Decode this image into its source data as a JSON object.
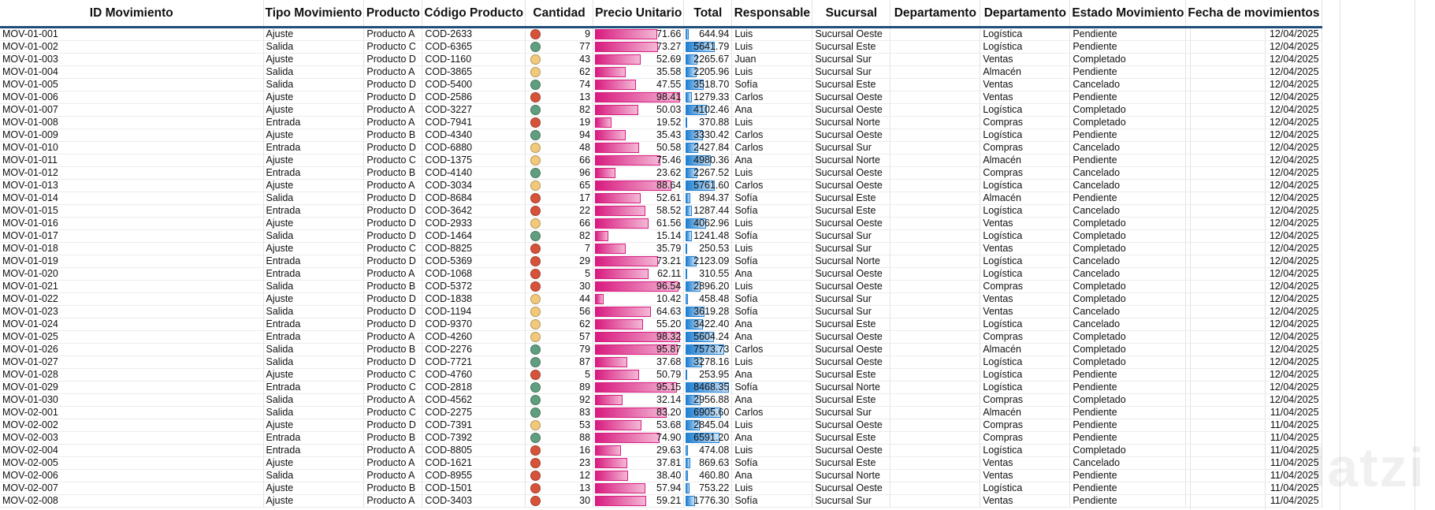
{
  "headers": [
    "ID Movimiento",
    "Tipo Movimiento",
    "Producto",
    "Código Producto",
    "Cantidad",
    "Precio Unitario",
    "Total",
    "Responsable",
    "Sucursal",
    "Departamento",
    "Departamento",
    "Estado Movimiento",
    "Fecha de movimientos"
  ],
  "colors": {
    "dot_red": "#d6533a",
    "dot_yellow": "#f2c97a",
    "dot_green": "#5f9e7e",
    "header_rule": "#1f4e79",
    "price_bar": "#d81b7f",
    "total_bar": "#1f7fd1"
  },
  "price_max": 98.41,
  "total_max": 8468.35,
  "watermark": "latzi",
  "rows": [
    {
      "id": "MOV-01-001",
      "tipo": "Ajuste",
      "producto": "Producto A",
      "codigo": "COD-2633",
      "cantidad": "9",
      "precio": "71.66",
      "total": "644.94",
      "resp": "Luis",
      "sucursal": "Sucursal Oeste",
      "dep1": "",
      "dep2": "Logística",
      "estado": "Pendiente",
      "fecha": "12/04/2025",
      "dot": "red"
    },
    {
      "id": "MOV-01-002",
      "tipo": "Salida",
      "producto": "Producto C",
      "codigo": "COD-6365",
      "cantidad": "77",
      "precio": "73.27",
      "total": "5641.79",
      "resp": "Luis",
      "sucursal": "Sucursal Este",
      "dep1": "",
      "dep2": "Logística",
      "estado": "Pendiente",
      "fecha": "12/04/2025",
      "dot": "green"
    },
    {
      "id": "MOV-01-003",
      "tipo": "Ajuste",
      "producto": "Producto D",
      "codigo": "COD-1160",
      "cantidad": "43",
      "precio": "52.69",
      "total": "2265.67",
      "resp": "Juan",
      "sucursal": "Sucursal Sur",
      "dep1": "",
      "dep2": "Ventas",
      "estado": "Completado",
      "fecha": "12/04/2025",
      "dot": "yellow"
    },
    {
      "id": "MOV-01-004",
      "tipo": "Salida",
      "producto": "Producto A",
      "codigo": "COD-3865",
      "cantidad": "62",
      "precio": "35.58",
      "total": "2205.96",
      "resp": "Luis",
      "sucursal": "Sucursal Sur",
      "dep1": "",
      "dep2": "Almacén",
      "estado": "Pendiente",
      "fecha": "12/04/2025",
      "dot": "yellow"
    },
    {
      "id": "MOV-01-005",
      "tipo": "Salida",
      "producto": "Producto D",
      "codigo": "COD-5400",
      "cantidad": "74",
      "precio": "47.55",
      "total": "3518.70",
      "resp": "Sofía",
      "sucursal": "Sucursal Este",
      "dep1": "",
      "dep2": "Ventas",
      "estado": "Cancelado",
      "fecha": "12/04/2025",
      "dot": "green"
    },
    {
      "id": "MOV-01-006",
      "tipo": "Ajuste",
      "producto": "Producto D",
      "codigo": "COD-2586",
      "cantidad": "13",
      "precio": "98.41",
      "total": "1279.33",
      "resp": "Carlos",
      "sucursal": "Sucursal Oeste",
      "dep1": "",
      "dep2": "Ventas",
      "estado": "Pendiente",
      "fecha": "12/04/2025",
      "dot": "red"
    },
    {
      "id": "MOV-01-007",
      "tipo": "Ajuste",
      "producto": "Producto A",
      "codigo": "COD-3227",
      "cantidad": "82",
      "precio": "50.03",
      "total": "4102.46",
      "resp": "Ana",
      "sucursal": "Sucursal Oeste",
      "dep1": "",
      "dep2": "Logística",
      "estado": "Completado",
      "fecha": "12/04/2025",
      "dot": "green"
    },
    {
      "id": "MOV-01-008",
      "tipo": "Entrada",
      "producto": "Producto A",
      "codigo": "COD-7941",
      "cantidad": "19",
      "precio": "19.52",
      "total": "370.88",
      "resp": "Luis",
      "sucursal": "Sucursal Norte",
      "dep1": "",
      "dep2": "Compras",
      "estado": "Completado",
      "fecha": "12/04/2025",
      "dot": "red"
    },
    {
      "id": "MOV-01-009",
      "tipo": "Ajuste",
      "producto": "Producto B",
      "codigo": "COD-4340",
      "cantidad": "94",
      "precio": "35.43",
      "total": "3330.42",
      "resp": "Carlos",
      "sucursal": "Sucursal Oeste",
      "dep1": "",
      "dep2": "Logística",
      "estado": "Pendiente",
      "fecha": "12/04/2025",
      "dot": "green"
    },
    {
      "id": "MOV-01-010",
      "tipo": "Entrada",
      "producto": "Producto D",
      "codigo": "COD-6880",
      "cantidad": "48",
      "precio": "50.58",
      "total": "2427.84",
      "resp": "Carlos",
      "sucursal": "Sucursal Sur",
      "dep1": "",
      "dep2": "Compras",
      "estado": "Cancelado",
      "fecha": "12/04/2025",
      "dot": "yellow"
    },
    {
      "id": "MOV-01-011",
      "tipo": "Ajuste",
      "producto": "Producto C",
      "codigo": "COD-1375",
      "cantidad": "66",
      "precio": "75.46",
      "total": "4980.36",
      "resp": "Ana",
      "sucursal": "Sucursal Norte",
      "dep1": "",
      "dep2": "Almacén",
      "estado": "Pendiente",
      "fecha": "12/04/2025",
      "dot": "yellow"
    },
    {
      "id": "MOV-01-012",
      "tipo": "Entrada",
      "producto": "Producto B",
      "codigo": "COD-4140",
      "cantidad": "96",
      "precio": "23.62",
      "total": "2267.52",
      "resp": "Luis",
      "sucursal": "Sucursal Oeste",
      "dep1": "",
      "dep2": "Compras",
      "estado": "Cancelado",
      "fecha": "12/04/2025",
      "dot": "green"
    },
    {
      "id": "MOV-01-013",
      "tipo": "Ajuste",
      "producto": "Producto A",
      "codigo": "COD-3034",
      "cantidad": "65",
      "precio": "88.64",
      "total": "5761.60",
      "resp": "Carlos",
      "sucursal": "Sucursal Oeste",
      "dep1": "",
      "dep2": "Logística",
      "estado": "Cancelado",
      "fecha": "12/04/2025",
      "dot": "yellow"
    },
    {
      "id": "MOV-01-014",
      "tipo": "Salida",
      "producto": "Producto D",
      "codigo": "COD-8684",
      "cantidad": "17",
      "precio": "52.61",
      "total": "894.37",
      "resp": "Sofía",
      "sucursal": "Sucursal Este",
      "dep1": "",
      "dep2": "Almacén",
      "estado": "Pendiente",
      "fecha": "12/04/2025",
      "dot": "red"
    },
    {
      "id": "MOV-01-015",
      "tipo": "Entrada",
      "producto": "Producto D",
      "codigo": "COD-3642",
      "cantidad": "22",
      "precio": "58.52",
      "total": "1287.44",
      "resp": "Sofía",
      "sucursal": "Sucursal Este",
      "dep1": "",
      "dep2": "Logística",
      "estado": "Cancelado",
      "fecha": "12/04/2025",
      "dot": "red"
    },
    {
      "id": "MOV-01-016",
      "tipo": "Ajuste",
      "producto": "Producto D",
      "codigo": "COD-2933",
      "cantidad": "66",
      "precio": "61.56",
      "total": "4062.96",
      "resp": "Luis",
      "sucursal": "Sucursal Oeste",
      "dep1": "",
      "dep2": "Ventas",
      "estado": "Completado",
      "fecha": "12/04/2025",
      "dot": "yellow"
    },
    {
      "id": "MOV-01-017",
      "tipo": "Salida",
      "producto": "Producto D",
      "codigo": "COD-1464",
      "cantidad": "82",
      "precio": "15.14",
      "total": "1241.48",
      "resp": "Sofía",
      "sucursal": "Sucursal Sur",
      "dep1": "",
      "dep2": "Logística",
      "estado": "Completado",
      "fecha": "12/04/2025",
      "dot": "green"
    },
    {
      "id": "MOV-01-018",
      "tipo": "Ajuste",
      "producto": "Producto C",
      "codigo": "COD-8825",
      "cantidad": "7",
      "precio": "35.79",
      "total": "250.53",
      "resp": "Luis",
      "sucursal": "Sucursal Sur",
      "dep1": "",
      "dep2": "Ventas",
      "estado": "Completado",
      "fecha": "12/04/2025",
      "dot": "red"
    },
    {
      "id": "MOV-01-019",
      "tipo": "Entrada",
      "producto": "Producto D",
      "codigo": "COD-5369",
      "cantidad": "29",
      "precio": "73.21",
      "total": "2123.09",
      "resp": "Sofía",
      "sucursal": "Sucursal Norte",
      "dep1": "",
      "dep2": "Logística",
      "estado": "Cancelado",
      "fecha": "12/04/2025",
      "dot": "red"
    },
    {
      "id": "MOV-01-020",
      "tipo": "Entrada",
      "producto": "Producto A",
      "codigo": "COD-1068",
      "cantidad": "5",
      "precio": "62.11",
      "total": "310.55",
      "resp": "Ana",
      "sucursal": "Sucursal Oeste",
      "dep1": "",
      "dep2": "Logística",
      "estado": "Cancelado",
      "fecha": "12/04/2025",
      "dot": "red"
    },
    {
      "id": "MOV-01-021",
      "tipo": "Salida",
      "producto": "Producto B",
      "codigo": "COD-5372",
      "cantidad": "30",
      "precio": "96.54",
      "total": "2896.20",
      "resp": "Luis",
      "sucursal": "Sucursal Oeste",
      "dep1": "",
      "dep2": "Compras",
      "estado": "Completado",
      "fecha": "12/04/2025",
      "dot": "red"
    },
    {
      "id": "MOV-01-022",
      "tipo": "Ajuste",
      "producto": "Producto D",
      "codigo": "COD-1838",
      "cantidad": "44",
      "precio": "10.42",
      "total": "458.48",
      "resp": "Sofía",
      "sucursal": "Sucursal Sur",
      "dep1": "",
      "dep2": "Ventas",
      "estado": "Completado",
      "fecha": "12/04/2025",
      "dot": "yellow"
    },
    {
      "id": "MOV-01-023",
      "tipo": "Salida",
      "producto": "Producto D",
      "codigo": "COD-1194",
      "cantidad": "56",
      "precio": "64.63",
      "total": "3619.28",
      "resp": "Sofía",
      "sucursal": "Sucursal Sur",
      "dep1": "",
      "dep2": "Ventas",
      "estado": "Cancelado",
      "fecha": "12/04/2025",
      "dot": "yellow"
    },
    {
      "id": "MOV-01-024",
      "tipo": "Entrada",
      "producto": "Producto D",
      "codigo": "COD-9370",
      "cantidad": "62",
      "precio": "55.20",
      "total": "3422.40",
      "resp": "Ana",
      "sucursal": "Sucursal Este",
      "dep1": "",
      "dep2": "Logística",
      "estado": "Cancelado",
      "fecha": "12/04/2025",
      "dot": "yellow"
    },
    {
      "id": "MOV-01-025",
      "tipo": "Entrada",
      "producto": "Producto A",
      "codigo": "COD-4260",
      "cantidad": "57",
      "precio": "98.32",
      "total": "5604.24",
      "resp": "Ana",
      "sucursal": "Sucursal Oeste",
      "dep1": "",
      "dep2": "Compras",
      "estado": "Completado",
      "fecha": "12/04/2025",
      "dot": "yellow"
    },
    {
      "id": "MOV-01-026",
      "tipo": "Salida",
      "producto": "Producto B",
      "codigo": "COD-2276",
      "cantidad": "79",
      "precio": "95.87",
      "total": "7573.73",
      "resp": "Carlos",
      "sucursal": "Sucursal Oeste",
      "dep1": "",
      "dep2": "Almacén",
      "estado": "Completado",
      "fecha": "12/04/2025",
      "dot": "green"
    },
    {
      "id": "MOV-01-027",
      "tipo": "Salida",
      "producto": "Producto D",
      "codigo": "COD-7721",
      "cantidad": "87",
      "precio": "37.68",
      "total": "3278.16",
      "resp": "Luis",
      "sucursal": "Sucursal Oeste",
      "dep1": "",
      "dep2": "Logística",
      "estado": "Completado",
      "fecha": "12/04/2025",
      "dot": "green"
    },
    {
      "id": "MOV-01-028",
      "tipo": "Ajuste",
      "producto": "Producto C",
      "codigo": "COD-4760",
      "cantidad": "5",
      "precio": "50.79",
      "total": "253.95",
      "resp": "Ana",
      "sucursal": "Sucursal Este",
      "dep1": "",
      "dep2": "Logística",
      "estado": "Pendiente",
      "fecha": "12/04/2025",
      "dot": "red"
    },
    {
      "id": "MOV-01-029",
      "tipo": "Entrada",
      "producto": "Producto C",
      "codigo": "COD-2818",
      "cantidad": "89",
      "precio": "95.15",
      "total": "8468.35",
      "resp": "Sofía",
      "sucursal": "Sucursal Norte",
      "dep1": "",
      "dep2": "Logística",
      "estado": "Pendiente",
      "fecha": "12/04/2025",
      "dot": "green"
    },
    {
      "id": "MOV-01-030",
      "tipo": "Salida",
      "producto": "Producto A",
      "codigo": "COD-4562",
      "cantidad": "92",
      "precio": "32.14",
      "total": "2956.88",
      "resp": "Ana",
      "sucursal": "Sucursal Este",
      "dep1": "",
      "dep2": "Compras",
      "estado": "Completado",
      "fecha": "12/04/2025",
      "dot": "green"
    },
    {
      "id": "MOV-02-001",
      "tipo": "Salida",
      "producto": "Producto C",
      "codigo": "COD-2275",
      "cantidad": "83",
      "precio": "83.20",
      "total": "6905.60",
      "resp": "Carlos",
      "sucursal": "Sucursal Sur",
      "dep1": "",
      "dep2": "Almacén",
      "estado": "Pendiente",
      "fecha": "11/04/2025",
      "dot": "green"
    },
    {
      "id": "MOV-02-002",
      "tipo": "Ajuste",
      "producto": "Producto D",
      "codigo": "COD-7391",
      "cantidad": "53",
      "precio": "53.68",
      "total": "2845.04",
      "resp": "Luis",
      "sucursal": "Sucursal Oeste",
      "dep1": "",
      "dep2": "Compras",
      "estado": "Pendiente",
      "fecha": "11/04/2025",
      "dot": "yellow"
    },
    {
      "id": "MOV-02-003",
      "tipo": "Entrada",
      "producto": "Producto B",
      "codigo": "COD-7392",
      "cantidad": "88",
      "precio": "74.90",
      "total": "6591.20",
      "resp": "Ana",
      "sucursal": "Sucursal Este",
      "dep1": "",
      "dep2": "Compras",
      "estado": "Pendiente",
      "fecha": "11/04/2025",
      "dot": "green"
    },
    {
      "id": "MOV-02-004",
      "tipo": "Entrada",
      "producto": "Producto A",
      "codigo": "COD-8805",
      "cantidad": "16",
      "precio": "29.63",
      "total": "474.08",
      "resp": "Luis",
      "sucursal": "Sucursal Oeste",
      "dep1": "",
      "dep2": "Logística",
      "estado": "Completado",
      "fecha": "11/04/2025",
      "dot": "red"
    },
    {
      "id": "MOV-02-005",
      "tipo": "Ajuste",
      "producto": "Producto A",
      "codigo": "COD-1621",
      "cantidad": "23",
      "precio": "37.81",
      "total": "869.63",
      "resp": "Sofía",
      "sucursal": "Sucursal Este",
      "dep1": "",
      "dep2": "Ventas",
      "estado": "Cancelado",
      "fecha": "11/04/2025",
      "dot": "red"
    },
    {
      "id": "MOV-02-006",
      "tipo": "Salida",
      "producto": "Producto A",
      "codigo": "COD-8955",
      "cantidad": "12",
      "precio": "38.40",
      "total": "460.80",
      "resp": "Ana",
      "sucursal": "Sucursal Norte",
      "dep1": "",
      "dep2": "Ventas",
      "estado": "Pendiente",
      "fecha": "11/04/2025",
      "dot": "red"
    },
    {
      "id": "MOV-02-007",
      "tipo": "Ajuste",
      "producto": "Producto B",
      "codigo": "COD-1501",
      "cantidad": "13",
      "precio": "57.94",
      "total": "753.22",
      "resp": "Luis",
      "sucursal": "Sucursal Oeste",
      "dep1": "",
      "dep2": "Logística",
      "estado": "Pendiente",
      "fecha": "11/04/2025",
      "dot": "red"
    },
    {
      "id": "MOV-02-008",
      "tipo": "Ajuste",
      "producto": "Producto A",
      "codigo": "COD-3403",
      "cantidad": "30",
      "precio": "59.21",
      "total": "1776.30",
      "resp": "Sofía",
      "sucursal": "Sucursal Sur",
      "dep1": "",
      "dep2": "Ventas",
      "estado": "Pendiente",
      "fecha": "11/04/2025",
      "dot": "red"
    }
  ]
}
